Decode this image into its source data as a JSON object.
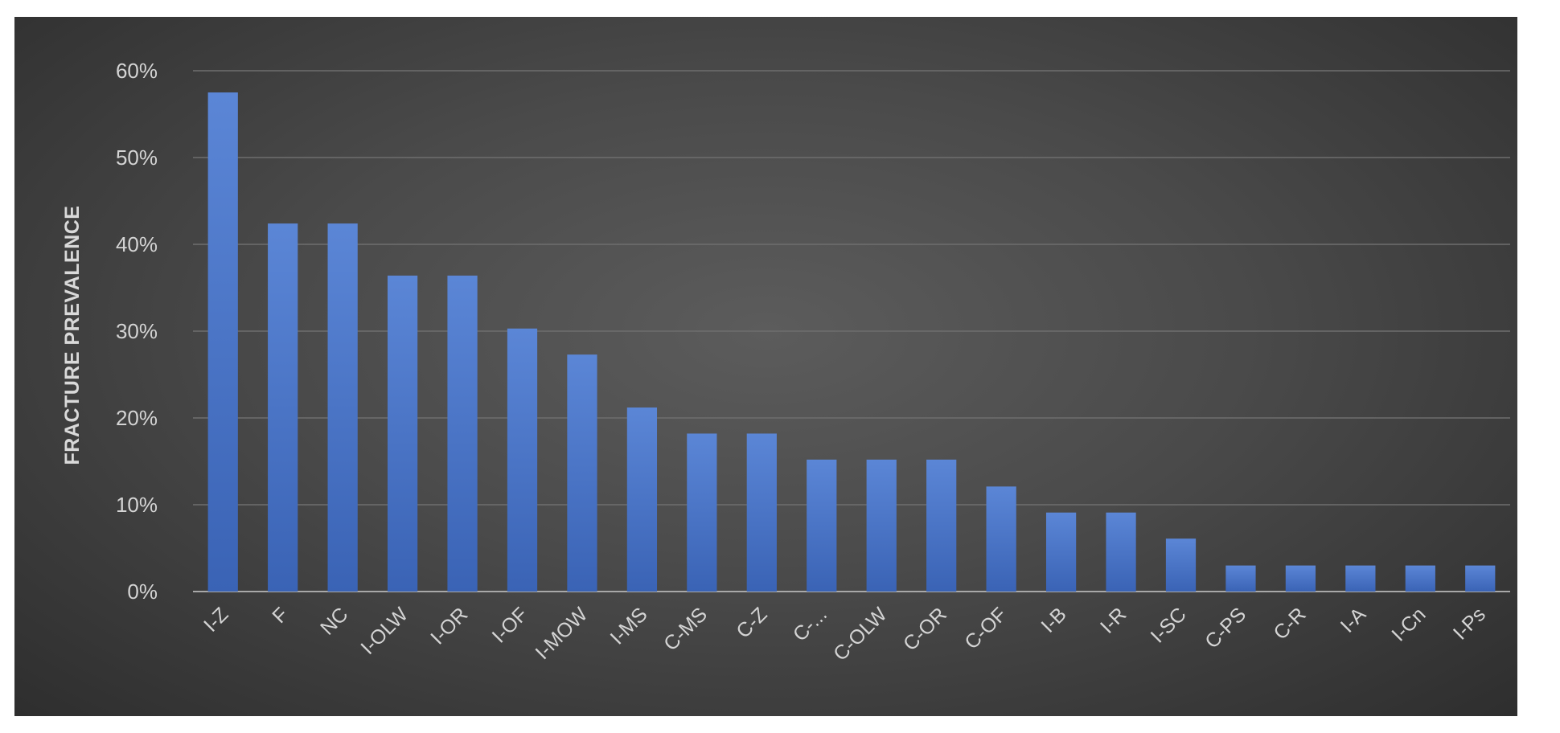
{
  "chart_data": {
    "type": "bar",
    "ylabel": "FRACTURE PREVALENCE",
    "xlabel": "",
    "ylim": [
      0,
      60
    ],
    "yticks": [
      0,
      10,
      20,
      30,
      40,
      50,
      60
    ],
    "ytick_labels": [
      "0%",
      "10%",
      "20%",
      "30%",
      "40%",
      "50%",
      "60%"
    ],
    "grid": true,
    "legend": "none",
    "categories": [
      "I-Z",
      "F",
      "NC",
      "I-OLW",
      "I-OR",
      "I-OF",
      "I-MOW",
      "I-MS",
      "C-MS",
      "C-Z",
      "C-...",
      "C-OLW",
      "C-OR",
      "C-OF",
      "I-B",
      "I-R",
      "I-SC",
      "C-PS",
      "C-R",
      "I-A",
      "I-Cn",
      "I-Ps"
    ],
    "values": [
      57.5,
      42.4,
      42.4,
      36.4,
      36.4,
      30.3,
      27.3,
      21.2,
      18.2,
      18.2,
      15.2,
      15.2,
      15.2,
      12.1,
      9.1,
      9.1,
      6.1,
      3.0,
      3.0,
      3.0,
      3.0,
      3.0
    ],
    "colors": {
      "bar_top": "#5b86d6",
      "bar_bottom": "#3a63b5",
      "gridline": "#6e6e6e",
      "axis": "#a8a8a8"
    }
  }
}
